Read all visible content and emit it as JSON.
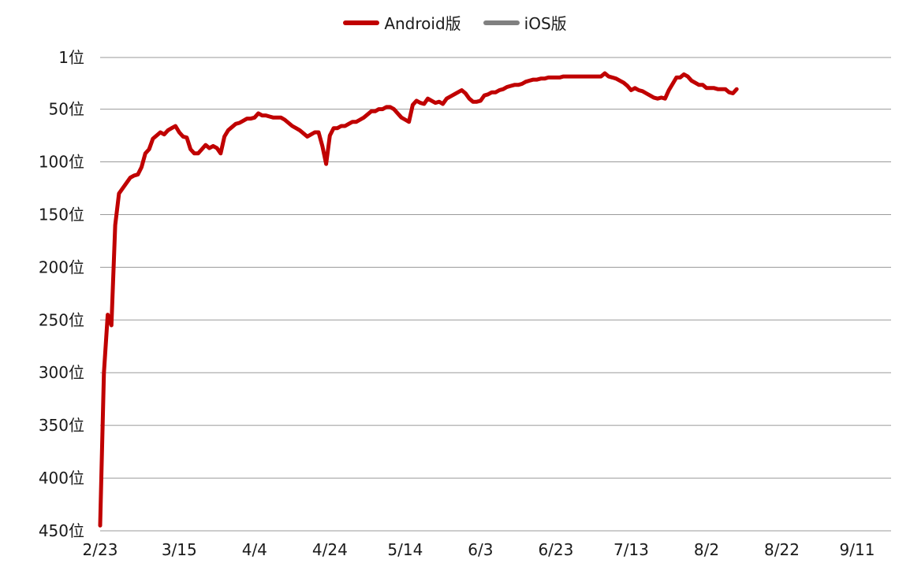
{
  "chart_data": {
    "type": "line",
    "title": "",
    "xlabel": "",
    "ylabel": "",
    "ylim": [
      1,
      450
    ],
    "y_reversed": true,
    "grid": true,
    "legend_position": "top",
    "x_domain": [
      "2/23",
      "9/20"
    ],
    "x_tick_labels": [
      "2/23",
      "3/15",
      "4/4",
      "4/24",
      "5/14",
      "6/3",
      "6/23",
      "7/13",
      "8/2",
      "8/22",
      "9/11"
    ],
    "y_ticks": [
      1,
      50,
      100,
      150,
      200,
      250,
      300,
      350,
      400,
      450
    ],
    "y_tick_labels": [
      "1位",
      "50位",
      "100位",
      "150位",
      "200位",
      "250位",
      "300位",
      "350位",
      "400位",
      "450位"
    ],
    "series": [
      {
        "name": "Android版",
        "color": "#c00000",
        "points": [
          [
            "2/23",
            445
          ],
          [
            "2/24",
            300
          ],
          [
            "2/25",
            245
          ],
          [
            "2/26",
            255
          ],
          [
            "2/27",
            160
          ],
          [
            "2/28",
            130
          ],
          [
            "3/1",
            120
          ],
          [
            "3/2",
            115
          ],
          [
            "3/3",
            113
          ],
          [
            "3/4",
            112
          ],
          [
            "3/5",
            105
          ],
          [
            "3/6",
            92
          ],
          [
            "3/7",
            88
          ],
          [
            "3/8",
            78
          ],
          [
            "3/9",
            75
          ],
          [
            "3/10",
            72
          ],
          [
            "3/11",
            74
          ],
          [
            "3/12",
            70
          ],
          [
            "3/13",
            68
          ],
          [
            "3/14",
            66
          ],
          [
            "3/15",
            72
          ],
          [
            "3/16",
            76
          ],
          [
            "3/17",
            77
          ],
          [
            "3/18",
            88
          ],
          [
            "3/19",
            92
          ],
          [
            "3/20",
            92
          ],
          [
            "3/21",
            88
          ],
          [
            "3/22",
            84
          ],
          [
            "3/23",
            87
          ],
          [
            "3/24",
            85
          ],
          [
            "3/25",
            87
          ],
          [
            "3/26",
            92
          ],
          [
            "3/27",
            76
          ],
          [
            "3/28",
            70
          ],
          [
            "3/29",
            67
          ],
          [
            "3/30",
            64
          ],
          [
            "3/31",
            63
          ],
          [
            "4/1",
            61
          ],
          [
            "4/2",
            59
          ],
          [
            "4/3",
            59
          ],
          [
            "4/4",
            58
          ],
          [
            "4/5",
            54
          ],
          [
            "4/6",
            56
          ],
          [
            "4/7",
            56
          ],
          [
            "4/8",
            57
          ],
          [
            "4/9",
            58
          ],
          [
            "4/10",
            58
          ],
          [
            "4/11",
            58
          ],
          [
            "4/12",
            60
          ],
          [
            "4/13",
            63
          ],
          [
            "4/14",
            66
          ],
          [
            "4/15",
            68
          ],
          [
            "4/16",
            70
          ],
          [
            "4/17",
            73
          ],
          [
            "4/18",
            76
          ],
          [
            "4/19",
            74
          ],
          [
            "4/20",
            72
          ],
          [
            "4/21",
            72
          ],
          [
            "4/22",
            85
          ],
          [
            "4/23",
            102
          ],
          [
            "4/24",
            75
          ],
          [
            "4/25",
            68
          ],
          [
            "4/26",
            68
          ],
          [
            "4/27",
            66
          ],
          [
            "4/28",
            66
          ],
          [
            "4/29",
            64
          ],
          [
            "4/30",
            62
          ],
          [
            "5/1",
            62
          ],
          [
            "5/2",
            60
          ],
          [
            "5/3",
            58
          ],
          [
            "5/4",
            55
          ],
          [
            "5/5",
            52
          ],
          [
            "5/6",
            52
          ],
          [
            "5/7",
            50
          ],
          [
            "5/8",
            50
          ],
          [
            "5/9",
            48
          ],
          [
            "5/10",
            48
          ],
          [
            "5/11",
            50
          ],
          [
            "5/12",
            54
          ],
          [
            "5/13",
            58
          ],
          [
            "5/14",
            60
          ],
          [
            "5/15",
            62
          ],
          [
            "5/16",
            46
          ],
          [
            "5/17",
            42
          ],
          [
            "5/18",
            44
          ],
          [
            "5/19",
            45
          ],
          [
            "5/20",
            40
          ],
          [
            "5/21",
            42
          ],
          [
            "5/22",
            44
          ],
          [
            "5/23",
            43
          ],
          [
            "5/24",
            45
          ],
          [
            "5/25",
            40
          ],
          [
            "5/26",
            38
          ],
          [
            "5/27",
            36
          ],
          [
            "5/28",
            34
          ],
          [
            "5/29",
            32
          ],
          [
            "5/30",
            35
          ],
          [
            "5/31",
            40
          ],
          [
            "6/1",
            43
          ],
          [
            "6/2",
            43
          ],
          [
            "6/3",
            42
          ],
          [
            "6/4",
            37
          ],
          [
            "6/5",
            36
          ],
          [
            "6/6",
            34
          ],
          [
            "6/7",
            34
          ],
          [
            "6/8",
            32
          ],
          [
            "6/9",
            31
          ],
          [
            "6/10",
            29
          ],
          [
            "6/11",
            28
          ],
          [
            "6/12",
            27
          ],
          [
            "6/13",
            27
          ],
          [
            "6/14",
            26
          ],
          [
            "6/15",
            24
          ],
          [
            "6/16",
            23
          ],
          [
            "6/17",
            22
          ],
          [
            "6/18",
            22
          ],
          [
            "6/19",
            21
          ],
          [
            "6/20",
            21
          ],
          [
            "6/21",
            20
          ],
          [
            "6/22",
            20
          ],
          [
            "6/23",
            20
          ],
          [
            "6/24",
            20
          ],
          [
            "6/25",
            19
          ],
          [
            "6/26",
            19
          ],
          [
            "6/27",
            19
          ],
          [
            "6/28",
            19
          ],
          [
            "6/29",
            19
          ],
          [
            "6/30",
            19
          ],
          [
            "7/1",
            19
          ],
          [
            "7/2",
            19
          ],
          [
            "7/3",
            19
          ],
          [
            "7/4",
            19
          ],
          [
            "7/5",
            19
          ],
          [
            "7/6",
            16
          ],
          [
            "7/7",
            19
          ],
          [
            "7/8",
            20
          ],
          [
            "7/9",
            21
          ],
          [
            "7/10",
            23
          ],
          [
            "7/11",
            25
          ],
          [
            "7/12",
            28
          ],
          [
            "7/13",
            32
          ],
          [
            "7/14",
            30
          ],
          [
            "7/15",
            32
          ],
          [
            "7/16",
            33
          ],
          [
            "7/17",
            35
          ],
          [
            "7/18",
            37
          ],
          [
            "7/19",
            39
          ],
          [
            "7/20",
            40
          ],
          [
            "7/21",
            39
          ],
          [
            "7/22",
            40
          ],
          [
            "7/23",
            32
          ],
          [
            "7/24",
            26
          ],
          [
            "7/25",
            20
          ],
          [
            "7/26",
            20
          ],
          [
            "7/27",
            17
          ],
          [
            "7/28",
            19
          ],
          [
            "7/29",
            23
          ],
          [
            "7/30",
            25
          ],
          [
            "7/31",
            27
          ],
          [
            "8/1",
            27
          ],
          [
            "8/2",
            30
          ],
          [
            "8/3",
            30
          ],
          [
            "8/4",
            30
          ],
          [
            "8/5",
            31
          ],
          [
            "8/6",
            31
          ],
          [
            "8/7",
            31
          ],
          [
            "8/8",
            34
          ],
          [
            "8/9",
            35
          ],
          [
            "8/10",
            31
          ]
        ]
      },
      {
        "name": "iOS版",
        "color": "#808080",
        "points": []
      }
    ]
  }
}
